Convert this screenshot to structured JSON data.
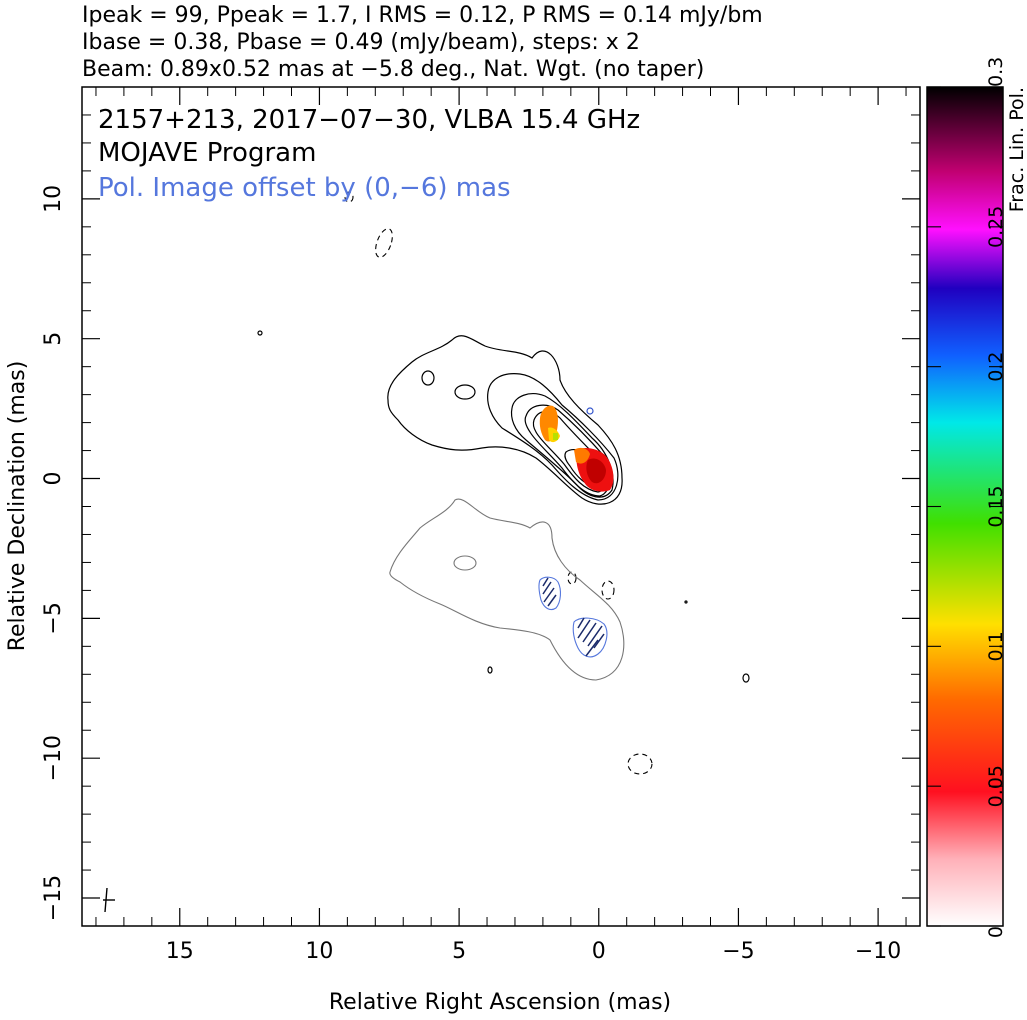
{
  "header": {
    "line1": "Ipeak = 99, Ppeak = 1.7, I RMS = 0.12, P RMS = 0.14 mJy/bm",
    "line2": "Ibase = 0.38, Pbase = 0.49 (mJy/beam), steps: x 2",
    "line3": "Beam: 0.89x0.52 mas at −5.8 deg., Nat. Wgt. (no taper)"
  },
  "plot_title": {
    "line1": "2157+213, 2017−07−30, VLBA 15.4 GHz",
    "line2": "MOJAVE Program",
    "line3": "Pol. Image offset by (0,−6) mas"
  },
  "colors": {
    "title_blue": "#5577dd",
    "total_intensity_contour": "#000000",
    "pol_contour": "#777777",
    "evpa": "#1a2a6a"
  },
  "chart_data": {
    "type": "contour",
    "xlabel": "Relative Right Ascension (mas)",
    "ylabel": "Relative Declination (mas)",
    "xlim": [
      18.5,
      -11.5
    ],
    "ylim": [
      -16,
      14
    ],
    "x_reversed": true,
    "xticks": [
      15,
      10,
      5,
      0,
      -5,
      -10
    ],
    "xtick_labels": [
      "15",
      "10",
      "5",
      "0",
      "−5",
      "−10"
    ],
    "yticks": [
      10,
      5,
      0,
      -5,
      -10,
      -15
    ],
    "ytick_labels": [
      "10",
      "5",
      "0",
      "−5",
      "−10",
      "−15"
    ],
    "peak_position": [
      0,
      0
    ],
    "pol_image_offset": [
      0,
      -6
    ],
    "contour_levels_mJy_per_beam": [
      0.38,
      0.76,
      1.52,
      3.04,
      6.08,
      12.16,
      24.32,
      48.64,
      97.28
    ],
    "pol_contour_levels_mJy_per_beam": [
      0.49,
      0.98
    ],
    "evpa_regions": [
      {
        "x": 1.7,
        "y": -4.3
      },
      {
        "x": 0.2,
        "y": -5.9
      }
    ],
    "frac_pol_regions": [
      {
        "x": 1.7,
        "y": 1.7,
        "frac_pol": 0.08
      },
      {
        "x": 0.0,
        "y": 0.3,
        "frac_pol": 0.03
      },
      {
        "x": 0.6,
        "y": 0.6,
        "frac_pol": 0.07
      }
    ],
    "colorbar": {
      "label": "Frac. Lin. Pol.",
      "range": [
        0,
        0.3
      ],
      "ticks": [
        0,
        0.05,
        0.1,
        0.15,
        0.2,
        0.25,
        0.3
      ],
      "tick_labels": [
        "0",
        "0.05",
        "0.1",
        "0.15",
        "0.2",
        "0.25",
        "0.3"
      ]
    },
    "beam": {
      "major_mas": 0.89,
      "minor_mas": 0.52,
      "pa_deg": -5.8
    }
  }
}
